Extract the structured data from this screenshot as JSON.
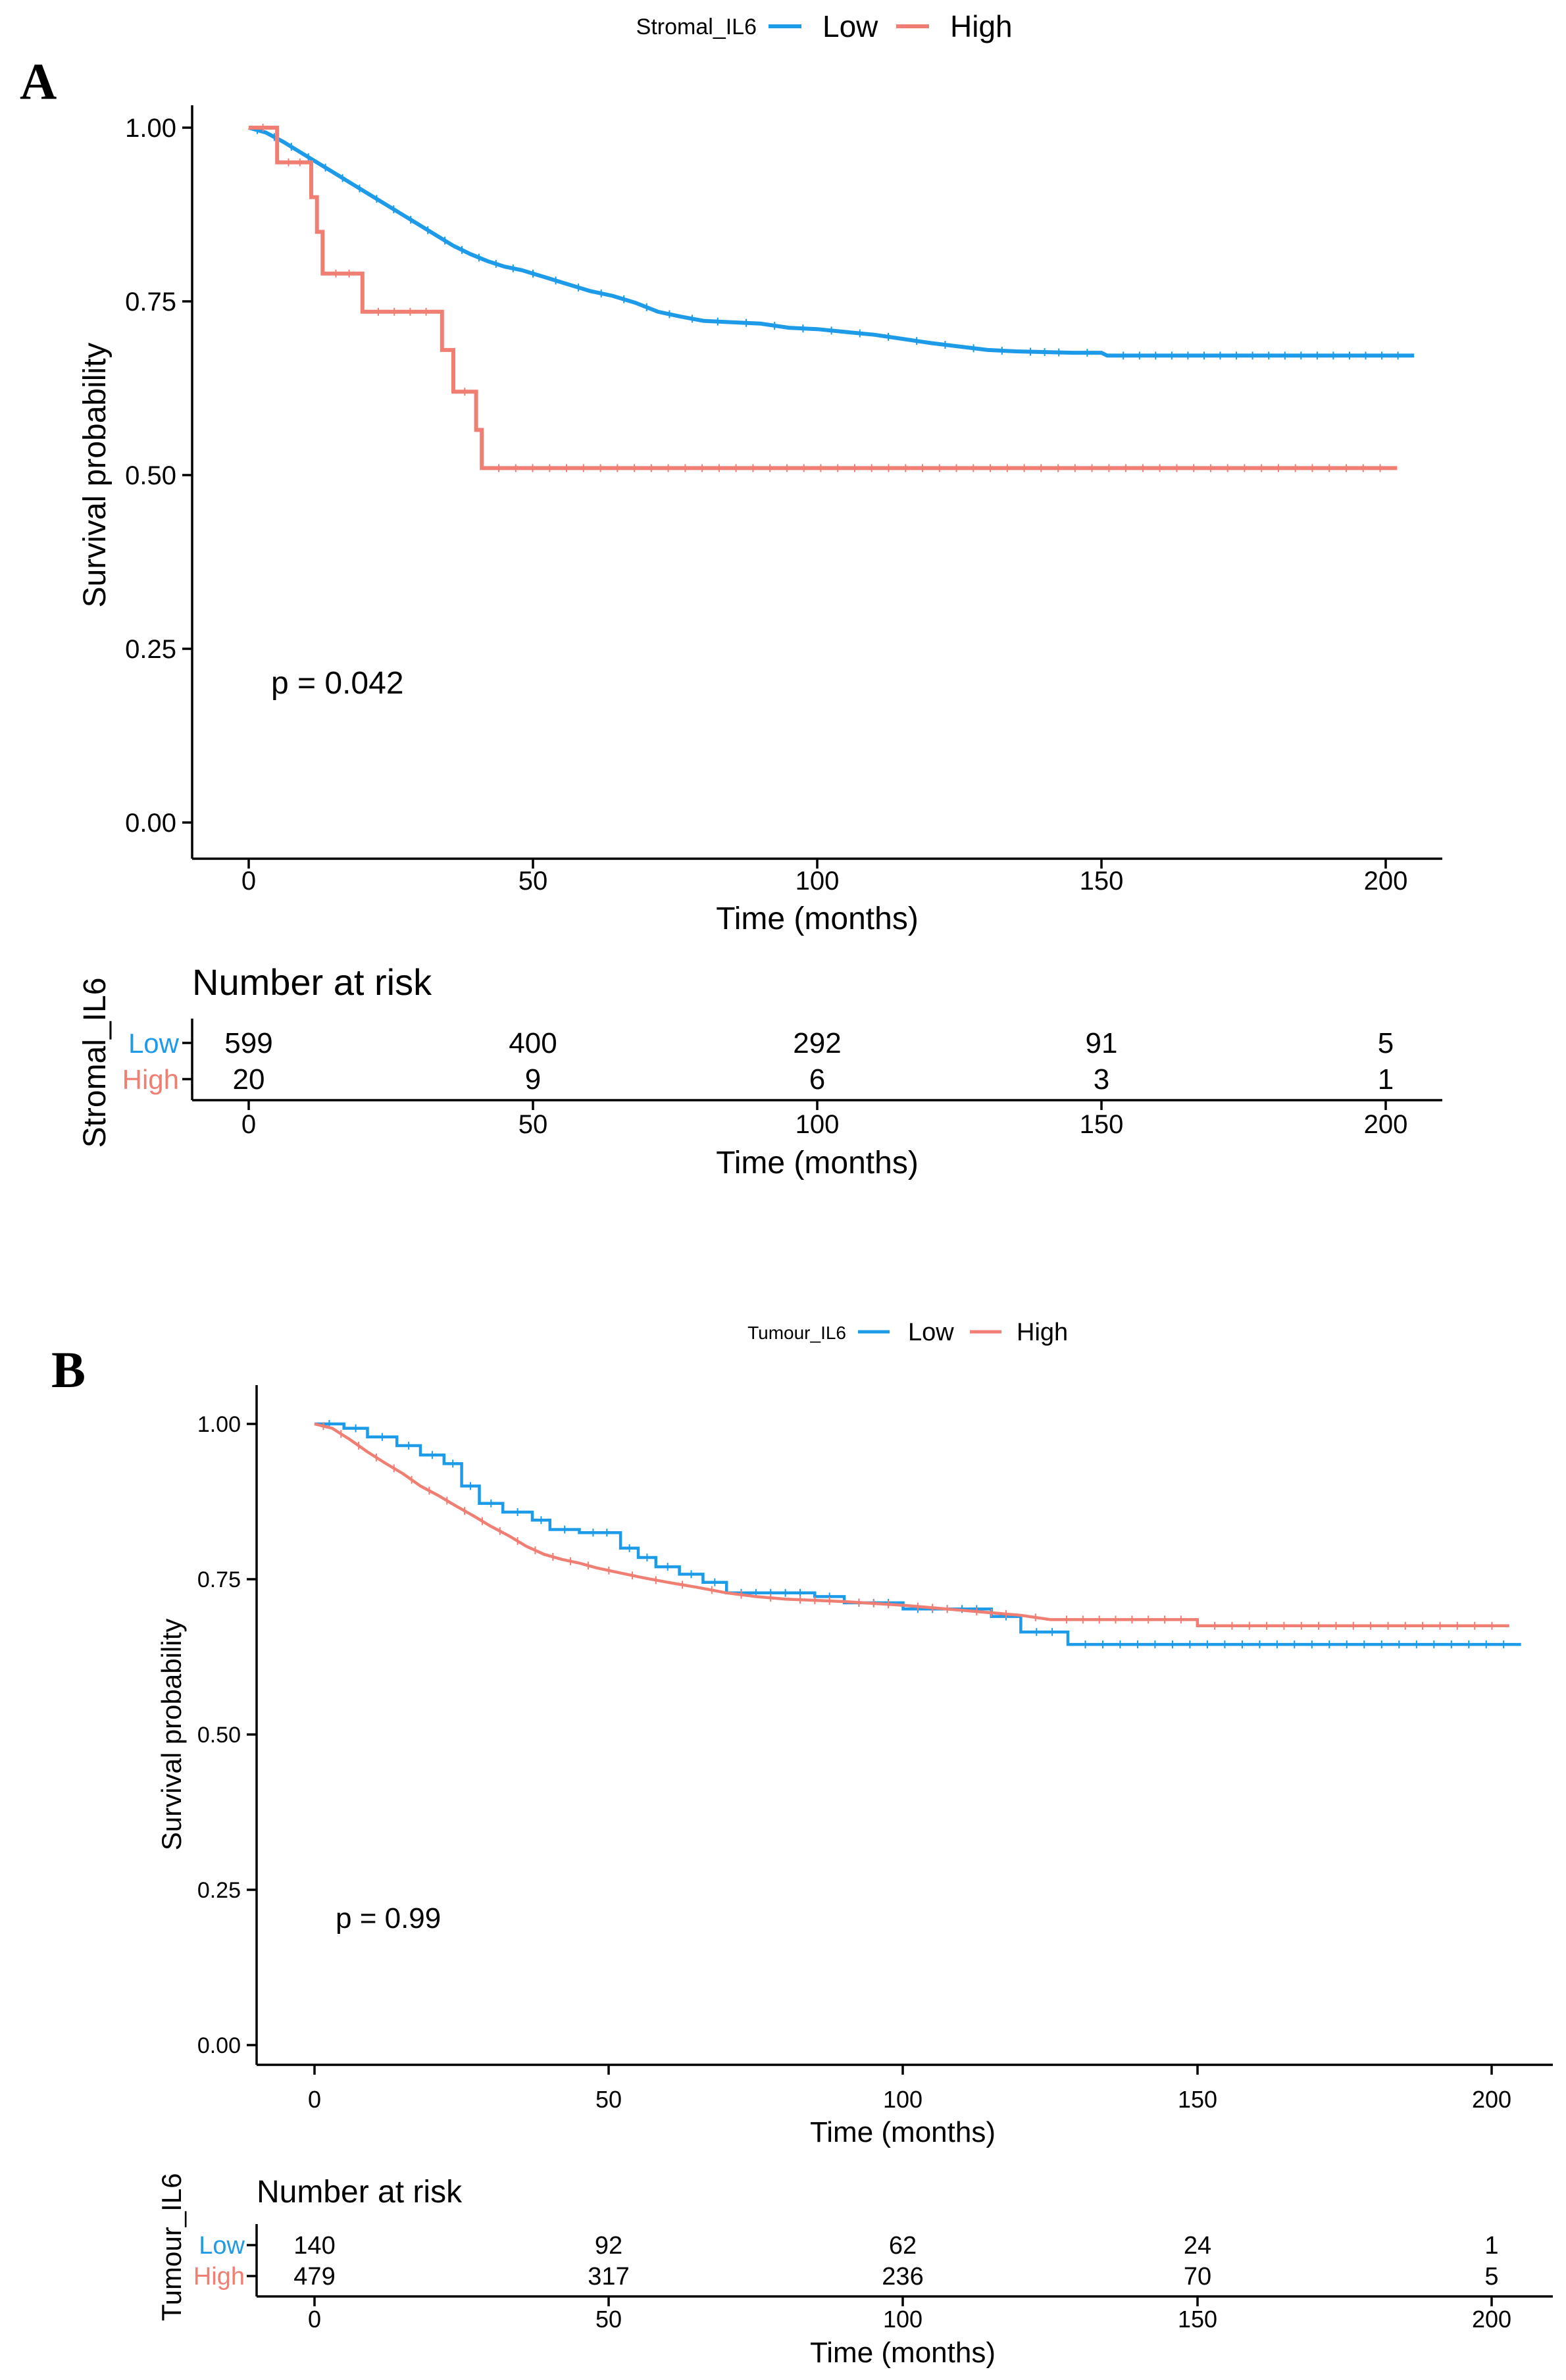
{
  "colors": {
    "low": "#1E9BE8",
    "high": "#F07E73",
    "axis": "#000000"
  },
  "chart_data": [
    {
      "type": "line",
      "panel_label": "A",
      "legend": {
        "title": "Stromal_IL6",
        "placement": "top",
        "entries": [
          "Low",
          "High"
        ]
      },
      "ylabel": "Survival probability",
      "xlabel": "Time (months)",
      "xlim": [
        0,
        205
      ],
      "ylim": [
        0,
        1
      ],
      "x_ticks": [
        "0",
        "50",
        "100",
        "150",
        "200"
      ],
      "y_ticks": [
        "0.00",
        "0.25",
        "0.50",
        "0.75",
        "1.00"
      ],
      "annotation": "p = 0.042",
      "series": [
        {
          "name": "Low",
          "points": [
            [
              0,
              1.0
            ],
            [
              3,
              0.993
            ],
            [
              6,
              0.98
            ],
            [
              9,
              0.965
            ],
            [
              12,
              0.95
            ],
            [
              15,
              0.935
            ],
            [
              18,
              0.92
            ],
            [
              21,
              0.905
            ],
            [
              24,
              0.89
            ],
            [
              27,
              0.875
            ],
            [
              30,
              0.86
            ],
            [
              33,
              0.845
            ],
            [
              36,
              0.83
            ],
            [
              39,
              0.818
            ],
            [
              42,
              0.808
            ],
            [
              45,
              0.8
            ],
            [
              48,
              0.795
            ],
            [
              52,
              0.785
            ],
            [
              56,
              0.775
            ],
            [
              60,
              0.765
            ],
            [
              64,
              0.758
            ],
            [
              68,
              0.748
            ],
            [
              72,
              0.735
            ],
            [
              76,
              0.728
            ],
            [
              80,
              0.722
            ],
            [
              85,
              0.72
            ],
            [
              90,
              0.718
            ],
            [
              95,
              0.712
            ],
            [
              100,
              0.71
            ],
            [
              105,
              0.706
            ],
            [
              110,
              0.702
            ],
            [
              115,
              0.696
            ],
            [
              120,
              0.69
            ],
            [
              125,
              0.685
            ],
            [
              130,
              0.68
            ],
            [
              135,
              0.678
            ],
            [
              145,
              0.676
            ],
            [
              150,
              0.676
            ],
            [
              151,
              0.672
            ],
            [
              205,
              0.672
            ]
          ]
        },
        {
          "name": "High",
          "points": [
            [
              0,
              1.0
            ],
            [
              5,
              1.0
            ],
            [
              5,
              0.95
            ],
            [
              11,
              0.95
            ],
            [
              11,
              0.9
            ],
            [
              12,
              0.9
            ],
            [
              12,
              0.85
            ],
            [
              13,
              0.85
            ],
            [
              13,
              0.79
            ],
            [
              20,
              0.79
            ],
            [
              20,
              0.735
            ],
            [
              34,
              0.735
            ],
            [
              34,
              0.68
            ],
            [
              36,
              0.68
            ],
            [
              36,
              0.62
            ],
            [
              40,
              0.62
            ],
            [
              40,
              0.565
            ],
            [
              41,
              0.565
            ],
            [
              41,
              0.51
            ],
            [
              202,
              0.51
            ]
          ]
        }
      ],
      "risk_table": {
        "title": "Number at risk",
        "strata_label": "Stromal_IL6",
        "rows": [
          {
            "name": "Low",
            "values": [
              "599",
              "400",
              "292",
              "91",
              "5"
            ]
          },
          {
            "name": "High",
            "values": [
              "20",
              "9",
              "6",
              "3",
              "1"
            ]
          }
        ],
        "x_ticks": [
          "0",
          "50",
          "100",
          "150",
          "200"
        ],
        "xlabel": "Time (months)"
      }
    },
    {
      "type": "line",
      "panel_label": "B",
      "legend": {
        "title": "Tumour_IL6",
        "placement": "top",
        "entries": [
          "Low",
          "High"
        ]
      },
      "ylabel": "Survival probability",
      "xlabel": "Time (months)",
      "xlim": [
        0,
        205
      ],
      "ylim": [
        0,
        1
      ],
      "x_ticks": [
        "0",
        "50",
        "100",
        "150",
        "200"
      ],
      "y_ticks": [
        "0.00",
        "0.25",
        "0.50",
        "0.75",
        "1.00"
      ],
      "annotation": "p = 0.99",
      "series": [
        {
          "name": "Low",
          "points": [
            [
              0,
              1.0
            ],
            [
              5,
              1.0
            ],
            [
              5,
              0.993
            ],
            [
              9,
              0.993
            ],
            [
              9,
              0.979
            ],
            [
              14,
              0.979
            ],
            [
              14,
              0.965
            ],
            [
              18,
              0.965
            ],
            [
              18,
              0.95
            ],
            [
              22,
              0.95
            ],
            [
              22,
              0.936
            ],
            [
              25,
              0.936
            ],
            [
              25,
              0.9
            ],
            [
              28,
              0.9
            ],
            [
              28,
              0.872
            ],
            [
              32,
              0.872
            ],
            [
              32,
              0.858
            ],
            [
              37,
              0.858
            ],
            [
              37,
              0.845
            ],
            [
              40,
              0.845
            ],
            [
              40,
              0.83
            ],
            [
              45,
              0.83
            ],
            [
              45,
              0.825
            ],
            [
              52,
              0.825
            ],
            [
              52,
              0.8
            ],
            [
              55,
              0.8
            ],
            [
              55,
              0.785
            ],
            [
              58,
              0.785
            ],
            [
              58,
              0.77
            ],
            [
              62,
              0.77
            ],
            [
              62,
              0.758
            ],
            [
              66,
              0.758
            ],
            [
              66,
              0.745
            ],
            [
              70,
              0.745
            ],
            [
              70,
              0.728
            ],
            [
              85,
              0.728
            ],
            [
              85,
              0.722
            ],
            [
              90,
              0.722
            ],
            [
              90,
              0.712
            ],
            [
              100,
              0.712
            ],
            [
              100,
              0.702
            ],
            [
              115,
              0.702
            ],
            [
              115,
              0.69
            ],
            [
              120,
              0.69
            ],
            [
              120,
              0.665
            ],
            [
              128,
              0.665
            ],
            [
              128,
              0.645
            ],
            [
              205,
              0.645
            ]
          ]
        },
        {
          "name": "High",
          "points": [
            [
              0,
              1.0
            ],
            [
              3,
              0.993
            ],
            [
              6,
              0.975
            ],
            [
              9,
              0.955
            ],
            [
              12,
              0.937
            ],
            [
              15,
              0.92
            ],
            [
              18,
              0.9
            ],
            [
              21,
              0.885
            ],
            [
              24,
              0.868
            ],
            [
              27,
              0.852
            ],
            [
              30,
              0.835
            ],
            [
              33,
              0.82
            ],
            [
              36,
              0.803
            ],
            [
              39,
              0.79
            ],
            [
              42,
              0.782
            ],
            [
              45,
              0.776
            ],
            [
              48,
              0.768
            ],
            [
              52,
              0.76
            ],
            [
              56,
              0.752
            ],
            [
              60,
              0.745
            ],
            [
              65,
              0.737
            ],
            [
              70,
              0.728
            ],
            [
              75,
              0.722
            ],
            [
              80,
              0.718
            ],
            [
              90,
              0.714
            ],
            [
              100,
              0.708
            ],
            [
              110,
              0.7
            ],
            [
              120,
              0.692
            ],
            [
              125,
              0.685
            ],
            [
              150,
              0.685
            ],
            [
              150,
              0.675
            ],
            [
              203,
              0.675
            ]
          ]
        }
      ],
      "risk_table": {
        "title": "Number at risk",
        "strata_label": "Tumour_IL6",
        "rows": [
          {
            "name": "Low",
            "values": [
              "140",
              "92",
              "62",
              "24",
              "1"
            ]
          },
          {
            "name": "High",
            "values": [
              "479",
              "317",
              "236",
              "70",
              "5"
            ]
          }
        ],
        "x_ticks": [
          "0",
          "50",
          "100",
          "150",
          "200"
        ],
        "xlabel": "Time (months)"
      }
    }
  ]
}
